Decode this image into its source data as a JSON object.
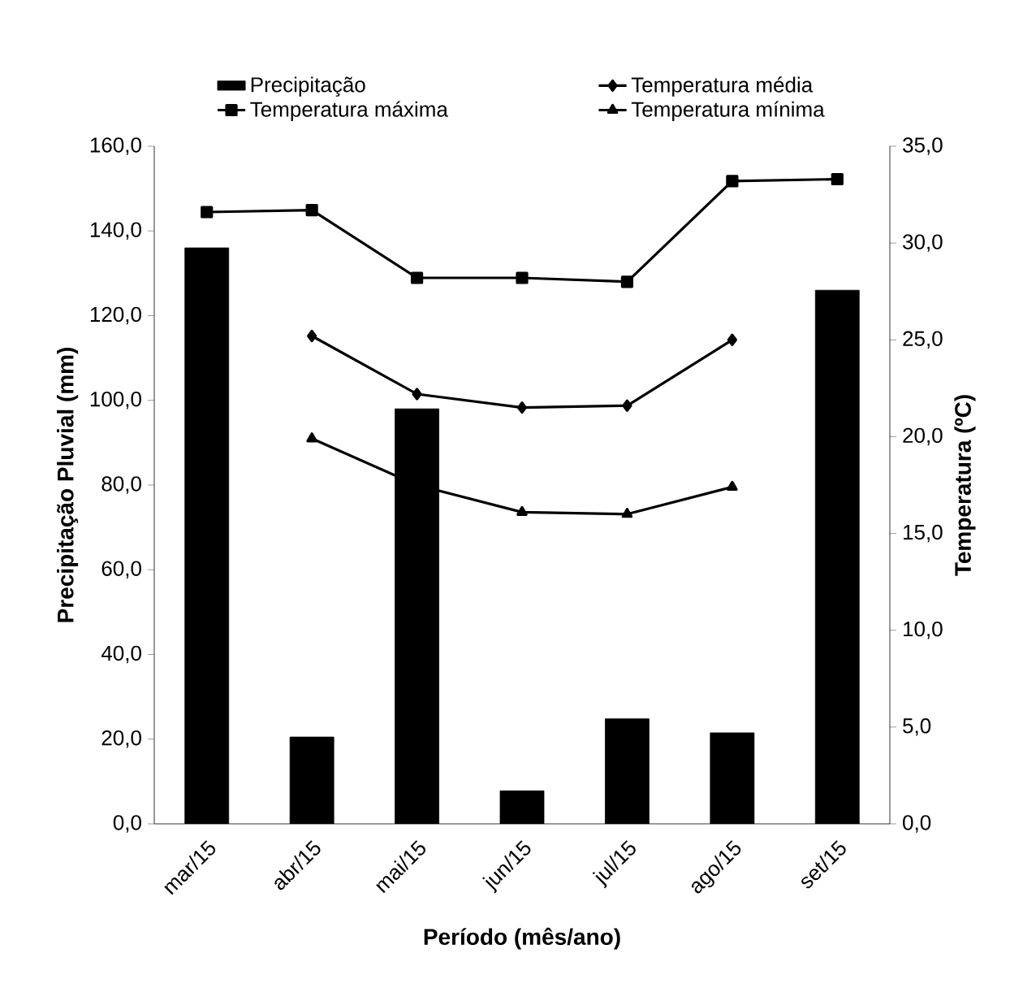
{
  "chart_data": {
    "type": "bar",
    "xlabel": "Período (mês/ano)",
    "ylabel": "Precipitação Pluvial (mm)",
    "y2label": "Temperatura (ºC)",
    "categories": [
      "mar/15",
      "abr/15",
      "mai/15",
      "jun/15",
      "jul/15",
      "ago/15",
      "set/15"
    ],
    "ylim": [
      0,
      160
    ],
    "yticks": [
      {
        "value": 0,
        "label": "0,0"
      },
      {
        "value": 20,
        "label": "20,0"
      },
      {
        "value": 40,
        "label": "40,0"
      },
      {
        "value": 60,
        "label": "60,0"
      },
      {
        "value": 80,
        "label": "80,0"
      },
      {
        "value": 100,
        "label": "100,0"
      },
      {
        "value": 120,
        "label": "120,0"
      },
      {
        "value": 140,
        "label": "140,0"
      },
      {
        "value": 160,
        "label": "160,0"
      }
    ],
    "y2lim": [
      0,
      35
    ],
    "y2ticks": [
      {
        "value": 0,
        "label": "0,0"
      },
      {
        "value": 5,
        "label": "5,0"
      },
      {
        "value": 10,
        "label": "10,0"
      },
      {
        "value": 15,
        "label": "15,0"
      },
      {
        "value": 20,
        "label": "20,0"
      },
      {
        "value": 25,
        "label": "25,0"
      },
      {
        "value": 30,
        "label": "30,0"
      },
      {
        "value": 35,
        "label": "35,0"
      }
    ],
    "legend": "top",
    "series": [
      {
        "name": "Precipitação",
        "color": "#000000",
        "values": [
          136,
          20.5,
          98,
          7.8,
          24.8,
          21.5,
          126
        ]
      },
      {
        "name": "Temperatura média",
        "type": "line",
        "axis": "y2",
        "marker": "diamond",
        "color": "#000000",
        "values": [
          null,
          25.2,
          22.2,
          21.5,
          21.6,
          25.0,
          null
        ]
      },
      {
        "name": "Temperatura máxima",
        "type": "line",
        "axis": "y2",
        "marker": "square",
        "color": "#000000",
        "values": [
          31.6,
          31.7,
          28.2,
          28.2,
          28.0,
          33.2,
          33.3
        ]
      },
      {
        "name": "Temperatura mínima",
        "type": "line",
        "axis": "y2",
        "marker": "triangle",
        "color": "#000000",
        "values": [
          null,
          19.9,
          17.5,
          16.1,
          16.0,
          17.4,
          null
        ]
      }
    ]
  }
}
